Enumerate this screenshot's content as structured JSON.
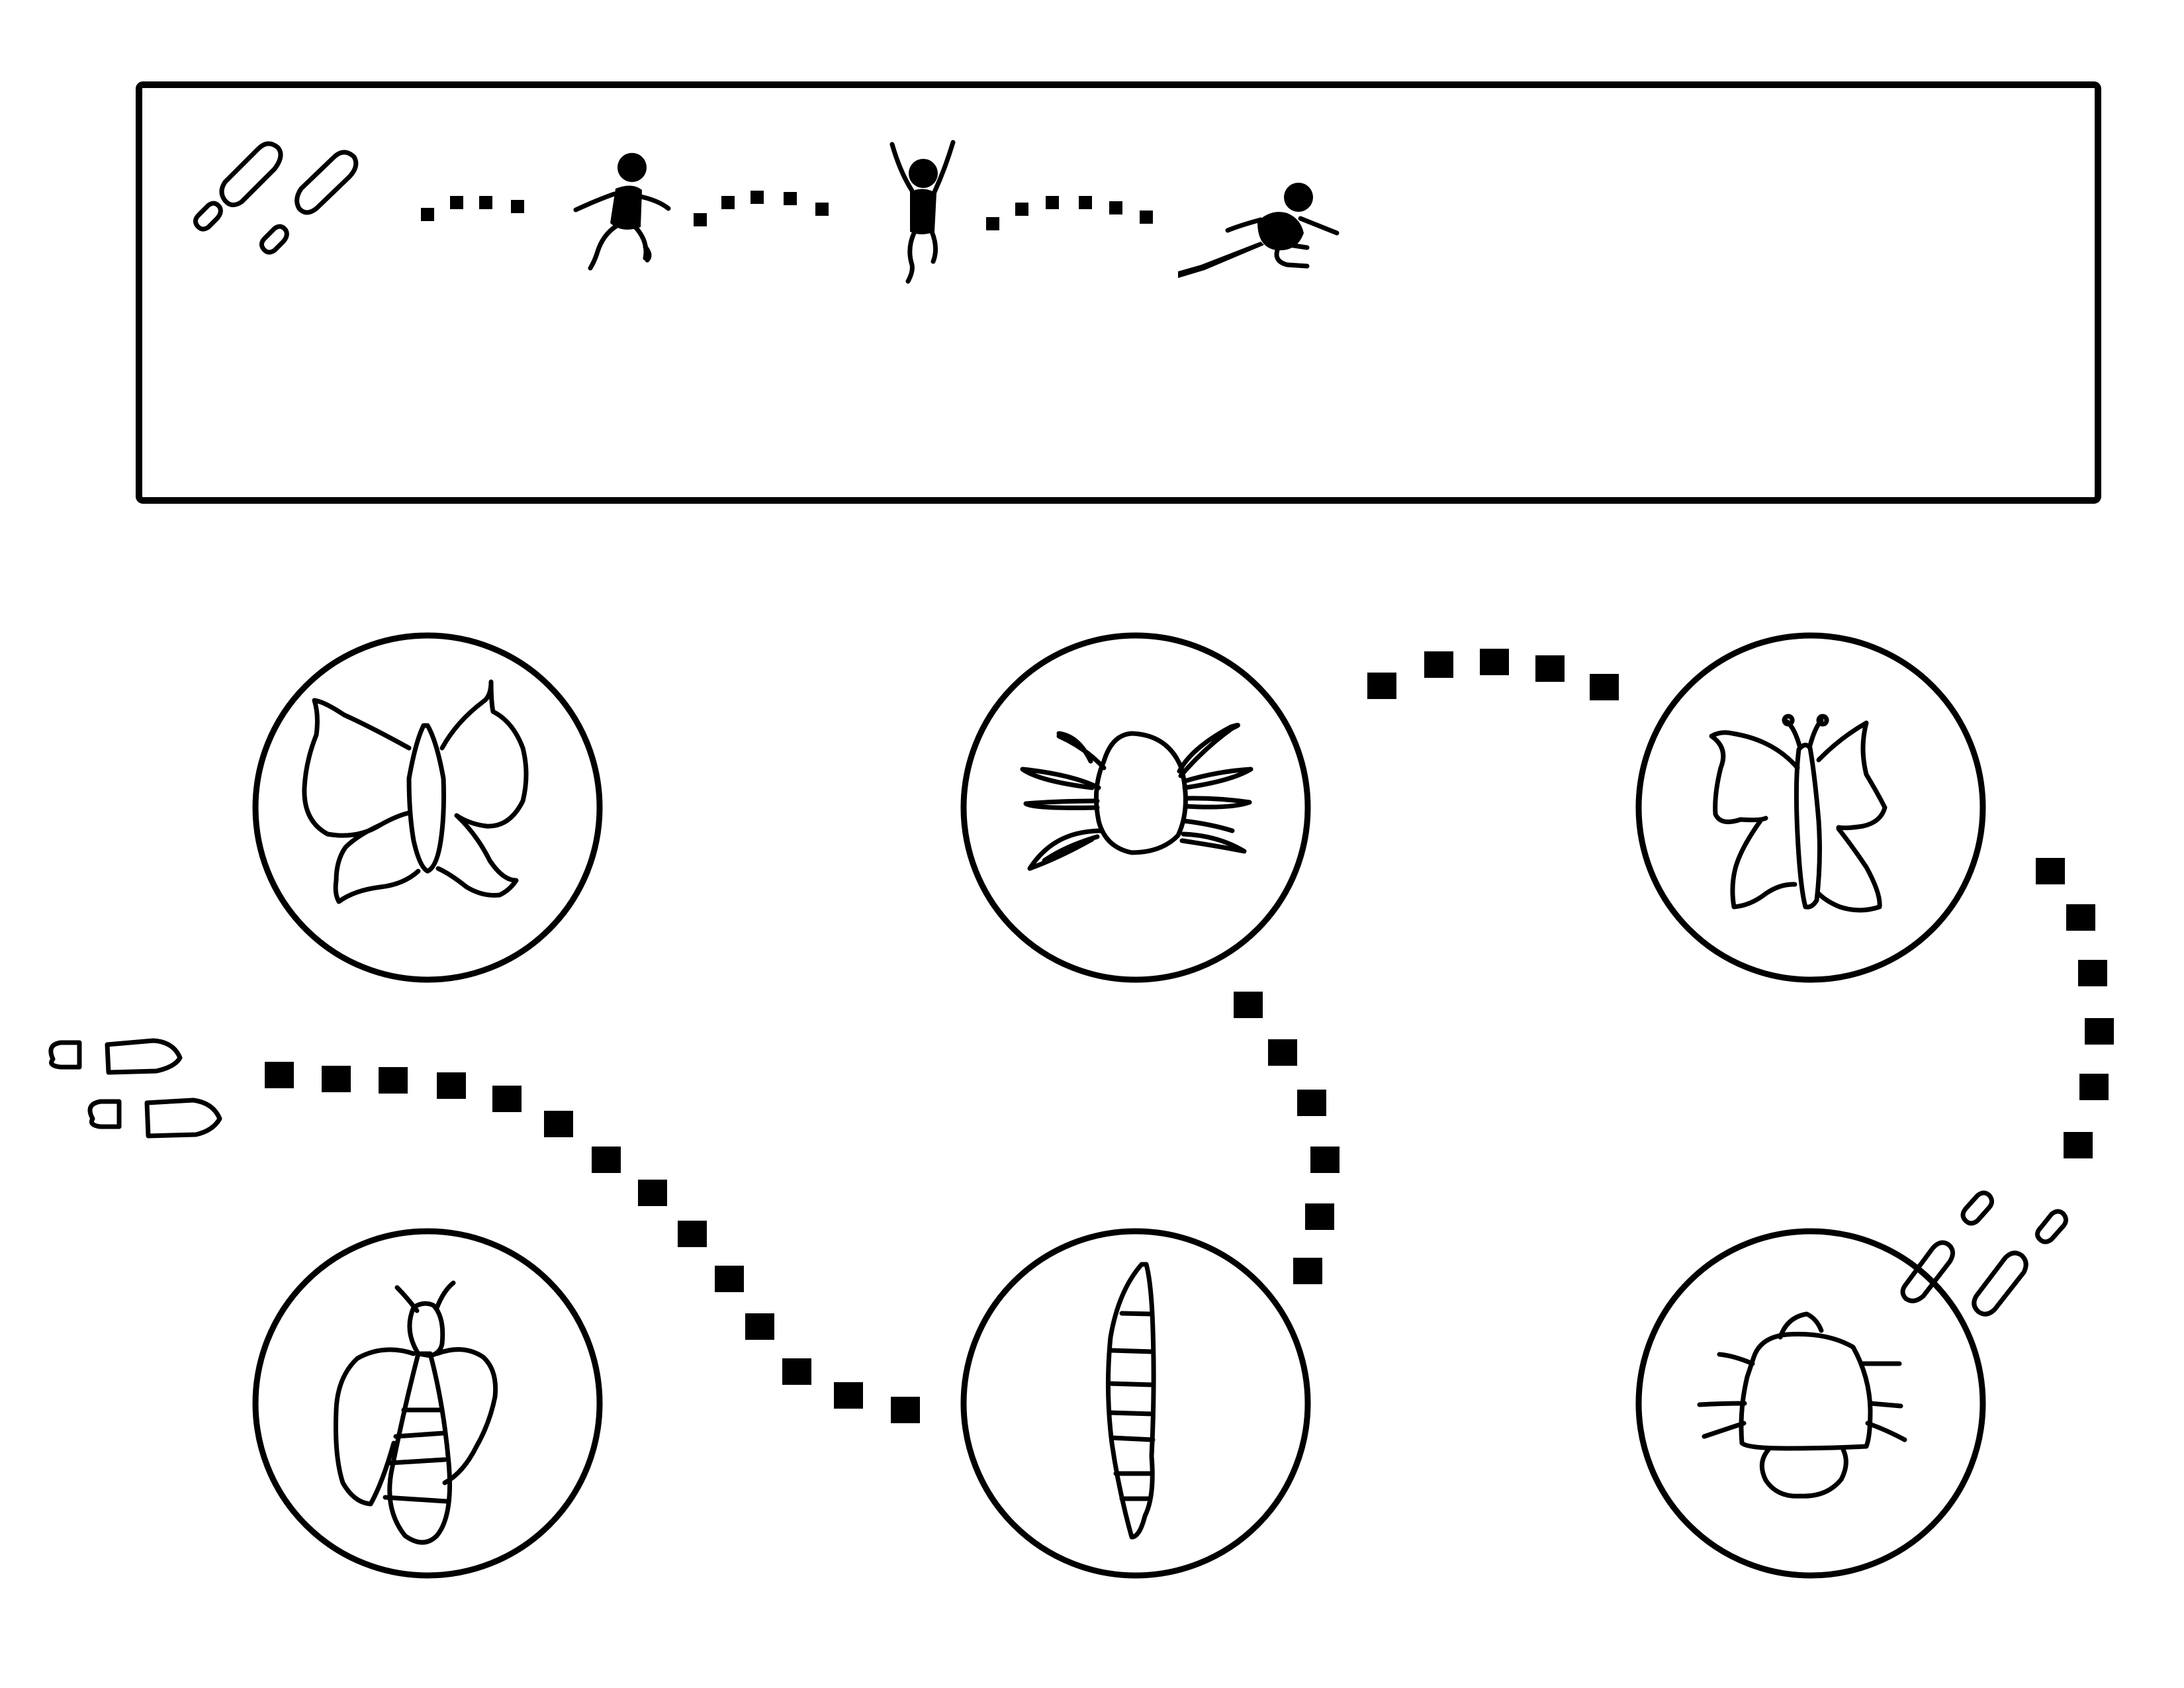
{
  "colors": {
    "ink": "#000000",
    "paper": "#ffffff"
  },
  "instruction_box": {
    "icons": [
      "footprints-icon",
      "running-child-icon",
      "jumping-child-icon",
      "crouching-child-icon"
    ]
  },
  "stations": [
    {
      "id": "butterfly",
      "icon": "butterfly-icon"
    },
    {
      "id": "spider",
      "icon": "spider-icon"
    },
    {
      "id": "butterfly-side",
      "icon": "butterfly-side-icon"
    },
    {
      "id": "bee",
      "icon": "bee-icon"
    },
    {
      "id": "larva",
      "icon": "larva-icon"
    },
    {
      "id": "beetle",
      "icon": "beetle-icon"
    }
  ],
  "path": {
    "start_icon": "footprints-icon",
    "end_icon": "footprints-icon"
  }
}
